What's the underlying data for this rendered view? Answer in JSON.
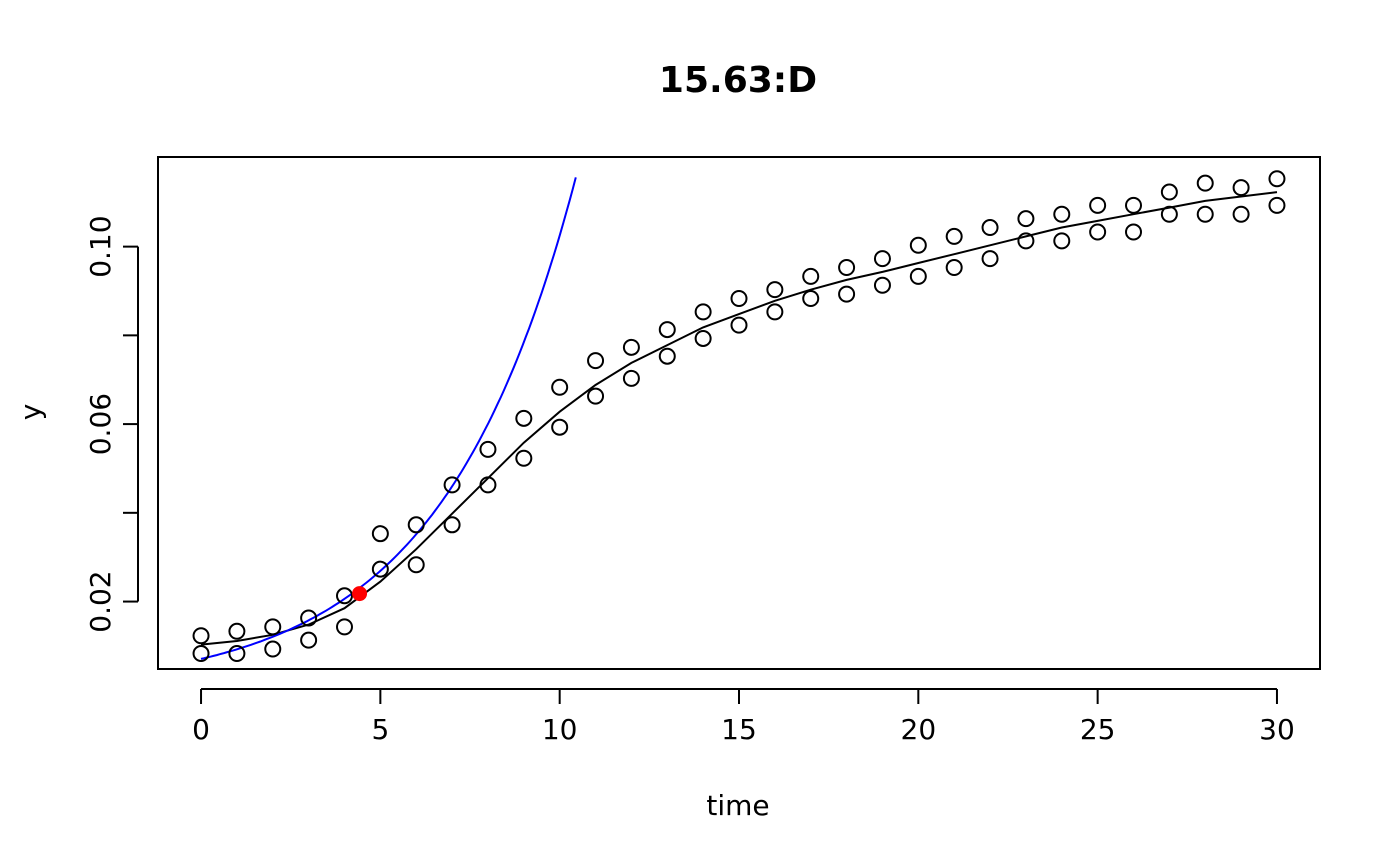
{
  "chart_data": {
    "type": "scatter",
    "title": "15.63:D",
    "xlabel": "time",
    "ylabel": "y",
    "xlim": [
      -1.2,
      31.2
    ],
    "ylim": [
      0.0048,
      0.1202
    ],
    "xticks": [
      0,
      5,
      10,
      15,
      20,
      25,
      30
    ],
    "xtick_labels": [
      "0",
      "5",
      "10",
      "15",
      "20",
      "25",
      "30"
    ],
    "yticks": [
      0.02,
      0.04,
      0.06,
      0.08,
      0.1
    ],
    "ytick_labels": [
      "0.02",
      "",
      "0.06",
      "",
      "0.10"
    ],
    "grid": false,
    "colors": {
      "points": "#000000",
      "fit": "#000000",
      "tangent": "#0000ff",
      "highlight": "#ff0000"
    },
    "series": [
      {
        "type": "scatter",
        "marker": "open-circle",
        "points": [
          [
            0,
            0.0123
          ],
          [
            0,
            0.0083
          ],
          [
            1,
            0.0133
          ],
          [
            1,
            0.0083
          ],
          [
            2,
            0.0143
          ],
          [
            2,
            0.0093
          ],
          [
            3,
            0.0163
          ],
          [
            3,
            0.0113
          ],
          [
            4,
            0.0213
          ],
          [
            4,
            0.0143
          ],
          [
            5,
            0.0353
          ],
          [
            5,
            0.0273
          ],
          [
            6,
            0.0373
          ],
          [
            6,
            0.0283
          ],
          [
            7,
            0.0463
          ],
          [
            7,
            0.0373
          ],
          [
            8,
            0.0543
          ],
          [
            8,
            0.0463
          ],
          [
            9,
            0.0613
          ],
          [
            9,
            0.0523
          ],
          [
            10,
            0.0683
          ],
          [
            10,
            0.0593
          ],
          [
            11,
            0.0743
          ],
          [
            11,
            0.0663
          ],
          [
            12,
            0.0773
          ],
          [
            12,
            0.0703
          ],
          [
            13,
            0.0813
          ],
          [
            13,
            0.0753
          ],
          [
            14,
            0.0853
          ],
          [
            14,
            0.0793
          ],
          [
            15,
            0.0883
          ],
          [
            15,
            0.0823
          ],
          [
            16,
            0.0903
          ],
          [
            16,
            0.0853
          ],
          [
            17,
            0.0933
          ],
          [
            17,
            0.0883
          ],
          [
            18,
            0.0953
          ],
          [
            18,
            0.0893
          ],
          [
            19,
            0.0973
          ],
          [
            19,
            0.0913
          ],
          [
            20,
            0.1003
          ],
          [
            20,
            0.0933
          ],
          [
            21,
            0.1023
          ],
          [
            21,
            0.0953
          ],
          [
            22,
            0.1043
          ],
          [
            22,
            0.0973
          ],
          [
            23,
            0.1063
          ],
          [
            23,
            0.1013
          ],
          [
            24,
            0.1073
          ],
          [
            24,
            0.1013
          ],
          [
            25,
            0.1093
          ],
          [
            25,
            0.1033
          ],
          [
            26,
            0.1093
          ],
          [
            26,
            0.1033
          ],
          [
            27,
            0.1123
          ],
          [
            27,
            0.1073
          ],
          [
            28,
            0.1143
          ],
          [
            28,
            0.1073
          ],
          [
            29,
            0.1133
          ],
          [
            29,
            0.1073
          ],
          [
            30,
            0.1153
          ],
          [
            30,
            0.1093
          ]
        ]
      },
      {
        "type": "line",
        "color": "#000000",
        "points": [
          [
            0,
            0.0103
          ],
          [
            1,
            0.0111
          ],
          [
            2,
            0.0125
          ],
          [
            3,
            0.0148
          ],
          [
            4,
            0.0185
          ],
          [
            5,
            0.0245
          ],
          [
            6,
            0.0318
          ],
          [
            7,
            0.0398
          ],
          [
            8,
            0.0478
          ],
          [
            9,
            0.0558
          ],
          [
            10,
            0.0628
          ],
          [
            11,
            0.0688
          ],
          [
            12,
            0.0738
          ],
          [
            13,
            0.0778
          ],
          [
            14,
            0.0818
          ],
          [
            15,
            0.0848
          ],
          [
            16,
            0.0878
          ],
          [
            17,
            0.0903
          ],
          [
            18,
            0.0925
          ],
          [
            19,
            0.0943
          ],
          [
            20,
            0.0963
          ],
          [
            21,
            0.0983
          ],
          [
            22,
            0.1003
          ],
          [
            23,
            0.1023
          ],
          [
            24,
            0.1043
          ],
          [
            25,
            0.1058
          ],
          [
            26,
            0.1073
          ],
          [
            27,
            0.1088
          ],
          [
            28,
            0.1103
          ],
          [
            29,
            0.1113
          ],
          [
            30,
            0.1123
          ]
        ]
      },
      {
        "type": "line",
        "color": "#0000ff",
        "function": "exponential",
        "x_range": [
          0,
          10.45
        ],
        "params": {
          "a": 0.00707,
          "b": 0.2674
        }
      },
      {
        "type": "point",
        "color": "#ff0000",
        "marker": "filled-circle",
        "points": [
          [
            4.42,
            0.0218
          ]
        ]
      }
    ]
  }
}
